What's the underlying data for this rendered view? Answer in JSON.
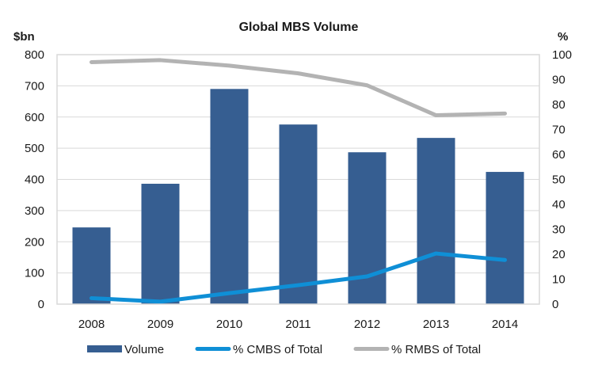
{
  "chart_data": {
    "type": "bar",
    "title": "Global MBS Volume",
    "categories": [
      "2008",
      "2009",
      "2010",
      "2011",
      "2012",
      "2013",
      "2014"
    ],
    "xlabel": "",
    "ylabel": "$bn",
    "ylabel_right": "%",
    "ylim": [
      0,
      800
    ],
    "yticks": [
      0,
      100,
      200,
      300,
      400,
      500,
      600,
      700,
      800
    ],
    "ylim_right": [
      0,
      100
    ],
    "yticks_right": [
      0,
      10,
      20,
      30,
      40,
      50,
      60,
      70,
      80,
      90,
      100
    ],
    "grid": true,
    "legend_position": "bottom",
    "series": [
      {
        "name": "Volume",
        "type": "bar",
        "axis": "left",
        "color": "#365E91",
        "values": [
          246,
          386,
          690,
          576,
          487,
          533,
          424
        ]
      },
      {
        "name": "% CMBS of Total",
        "type": "line",
        "axis": "right",
        "color": "#0F8FD6",
        "values": [
          2.4,
          1.0,
          4.4,
          7.6,
          11.1,
          20.3,
          17.7
        ]
      },
      {
        "name": "% RMBS of Total",
        "type": "line",
        "axis": "right",
        "color": "#B3B3B3",
        "values": [
          97.0,
          97.8,
          95.6,
          92.5,
          87.7,
          75.7,
          76.4
        ]
      }
    ],
    "colors": {
      "grid": "#D9D9D9",
      "axis": "#D9D9D9",
      "text": "#1a1a1a"
    }
  }
}
